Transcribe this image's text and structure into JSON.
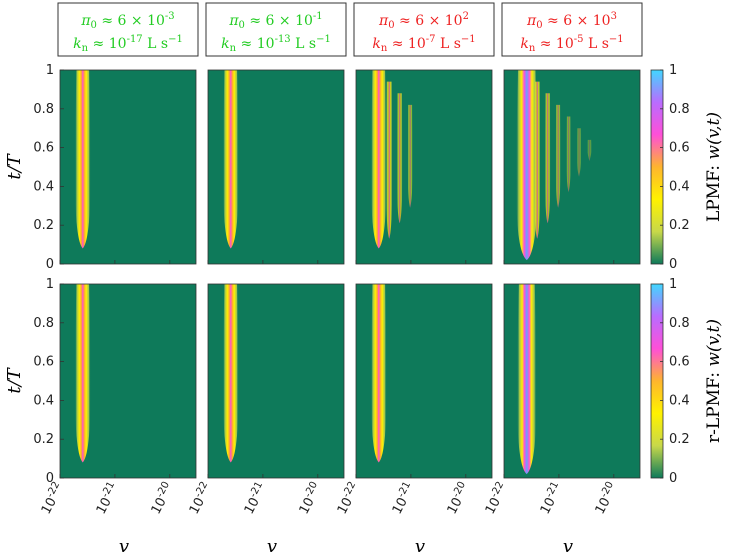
{
  "colors": {
    "background": "#0e7a5a",
    "colormap": [
      "#0e7a5a",
      "#c8d84a",
      "#fff200",
      "#ffb52e",
      "#ff4fd8",
      "#b96cff",
      "#41d7ff"
    ],
    "green_text": "#22cc22",
    "red_text": "#ee2222"
  },
  "chart_data": {
    "type": "heatmap",
    "xlabel": "v",
    "ylabel": "t/T",
    "x_scale": "log",
    "xlim": [
      1e-22,
      3e-20
    ],
    "ylim": [
      0,
      1
    ],
    "x_ticks": [
      1e-22,
      1e-21,
      1e-20
    ],
    "y_ticks": [
      0,
      0.2,
      0.4,
      0.6,
      0.8,
      1
    ],
    "colorbar": {
      "range": [
        0,
        1
      ],
      "ticks": [
        0,
        0.2,
        0.4,
        0.6,
        0.8,
        1
      ]
    },
    "rows": [
      {
        "label": "LPMF: w(v,t)",
        "key": "lpmf"
      },
      {
        "label": "r-LPMF: w(v,t)",
        "key": "rlpmf"
      }
    ],
    "columns": [
      {
        "pi0": "π0 ≈ 6 × 10^-3",
        "kn": "kn ≈ 10^-17 L s^-1",
        "color": "green",
        "bands_lpmf": 1,
        "bands_rlpmf": 1
      },
      {
        "pi0": "π0 ≈ 6 × 10^-1",
        "kn": "kn ≈ 10^-13 L s^-1",
        "color": "green",
        "bands_lpmf": 1,
        "bands_rlpmf": 1
      },
      {
        "pi0": "π0 ≈ 6 × 10^2",
        "kn": "kn ≈ 10^-7 L s^-1",
        "color": "red",
        "bands_lpmf": 4,
        "bands_rlpmf": 1
      },
      {
        "pi0": "π0 ≈ 6 × 10^3",
        "kn": "kn ≈ 10^-5 L s^-1",
        "color": "red",
        "bands_lpmf": 7,
        "bands_rlpmf": 1
      }
    ]
  }
}
